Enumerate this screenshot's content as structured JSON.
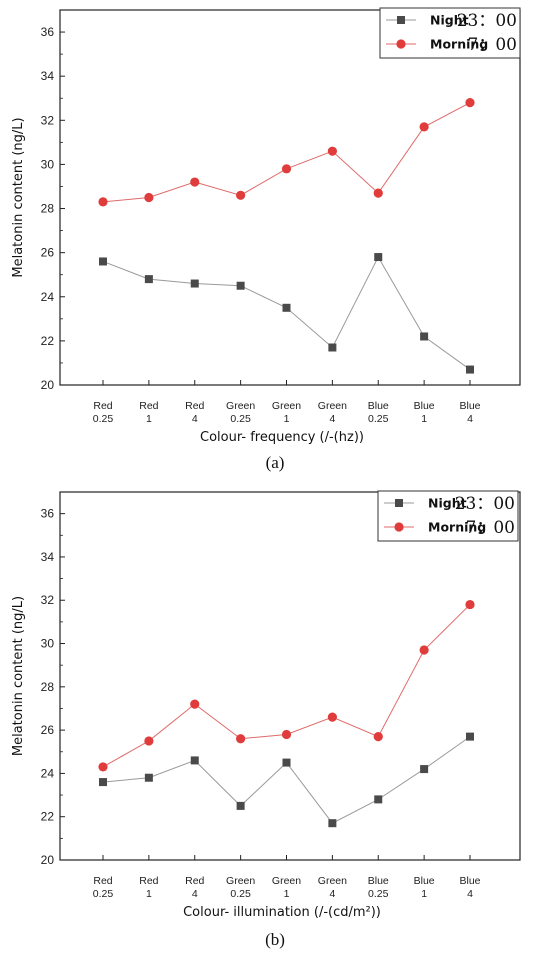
{
  "chart_data": [
    {
      "type": "line",
      "panel_label": "(a)",
      "categories": [
        [
          "Red",
          "0.25"
        ],
        [
          "Red",
          "1"
        ],
        [
          "Red",
          "4"
        ],
        [
          "Green",
          "0.25"
        ],
        [
          "Green",
          "1"
        ],
        [
          "Green",
          "4"
        ],
        [
          "Blue",
          "0.25"
        ],
        [
          "Blue",
          "1"
        ],
        [
          "Blue",
          "4"
        ]
      ],
      "xlabel": "Colour- frequency (/-(hz))",
      "ylabel": "Melatonin content (ng/L)",
      "ylim": [
        20,
        37
      ],
      "yticks": [
        20,
        22,
        24,
        26,
        28,
        30,
        32,
        34,
        36
      ],
      "legend_position": "top-right",
      "series": [
        {
          "name": "Night",
          "time": "23：00",
          "marker": "square",
          "color": "#4a4a4a",
          "line_color": "#9a9a9a",
          "values": [
            25.6,
            24.8,
            24.6,
            24.5,
            23.5,
            21.7,
            25.8,
            22.2,
            20.7
          ]
        },
        {
          "name": "Morning",
          "time": "7：00",
          "marker": "circle",
          "color": "#e03c3c",
          "line_color": "#e06a6a",
          "values": [
            28.3,
            28.5,
            29.2,
            28.6,
            29.8,
            30.6,
            28.7,
            31.7,
            32.8
          ]
        }
      ]
    },
    {
      "type": "line",
      "panel_label": "(b)",
      "categories": [
        [
          "Red",
          "0.25"
        ],
        [
          "Red",
          "1"
        ],
        [
          "Red",
          "4"
        ],
        [
          "Green",
          "0.25"
        ],
        [
          "Green",
          "1"
        ],
        [
          "Green",
          "4"
        ],
        [
          "Blue",
          "0.25"
        ],
        [
          "Blue",
          "1"
        ],
        [
          "Blue",
          "4"
        ]
      ],
      "xlabel": "Colour- illumination (/-(cd/m²))",
      "ylabel": "Melatonin content (ng/L)",
      "ylim": [
        20,
        37
      ],
      "yticks": [
        20,
        22,
        24,
        26,
        28,
        30,
        32,
        34,
        36
      ],
      "legend_position": "top-right",
      "series": [
        {
          "name": "Night",
          "time": "23：00",
          "marker": "square",
          "color": "#4a4a4a",
          "line_color": "#9a9a9a",
          "values": [
            23.6,
            23.8,
            24.6,
            22.5,
            24.5,
            21.7,
            22.8,
            24.2,
            25.7
          ]
        },
        {
          "name": "Morning",
          "time": "7：00",
          "marker": "circle",
          "color": "#e03c3c",
          "line_color": "#e06a6a",
          "values": [
            24.3,
            25.5,
            27.2,
            25.6,
            25.8,
            26.6,
            25.7,
            29.7,
            31.8
          ]
        }
      ]
    }
  ]
}
